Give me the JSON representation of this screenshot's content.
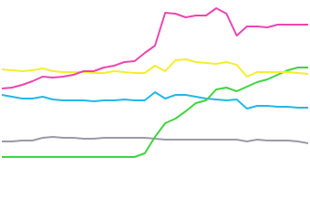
{
  "chart_data": {
    "type": "line",
    "categories": [
      null,
      null,
      null,
      null,
      null,
      null,
      null,
      null,
      null,
      null,
      null,
      null,
      null,
      null,
      null,
      null,
      null,
      null,
      null,
      null,
      null,
      null,
      null,
      null,
      null,
      null,
      null,
      null,
      null,
      null,
      null
    ],
    "ylim": [
      0,
      182
    ],
    "series": [
      {
        "color": "#9a9aa8",
        "values": [
          27,
          27,
          28,
          28,
          31,
          32,
          31,
          31,
          30,
          30,
          31,
          31,
          31,
          31,
          31,
          30,
          29,
          29,
          29,
          29,
          29,
          29,
          29,
          29,
          27,
          29,
          28,
          28,
          28,
          27,
          25
        ]
      },
      {
        "color": "#22b8e6",
        "values": [
          78,
          76,
          74,
          74,
          76,
          73,
          72,
          72,
          72,
          71,
          72,
          72,
          73,
          72,
          72,
          81,
          74,
          78,
          78,
          76,
          74,
          73,
          72,
          73,
          63,
          66,
          66,
          65,
          65,
          64,
          64
        ]
      },
      {
        "color": "#3fd43f",
        "values": [
          10,
          10,
          10,
          10,
          10,
          10,
          10,
          10,
          10,
          10,
          10,
          10,
          10,
          10,
          14,
          32,
          47,
          52,
          60,
          69,
          72,
          84,
          86,
          82,
          87,
          92,
          95,
          100,
          105,
          108,
          108
        ]
      },
      {
        "color": "#f4ee2e",
        "values": [
          106,
          105,
          104,
          105,
          107,
          104,
          103,
          103,
          103,
          102,
          102,
          104,
          103,
          102,
          102,
          110,
          104,
          116,
          117,
          114,
          113,
          112,
          114,
          111,
          98,
          103,
          103,
          103,
          103,
          102,
          101
        ]
      },
      {
        "color": "#ec46ae",
        "values": [
          85,
          86,
          89,
          93,
          98,
          97,
          98,
          100,
          104,
          104,
          108,
          110,
          114,
          115,
          124,
          132,
          168,
          167,
          163,
          165,
          165,
          173,
          167,
          143,
          153,
          153,
          152,
          155,
          155,
          155,
          155
        ]
      }
    ]
  }
}
